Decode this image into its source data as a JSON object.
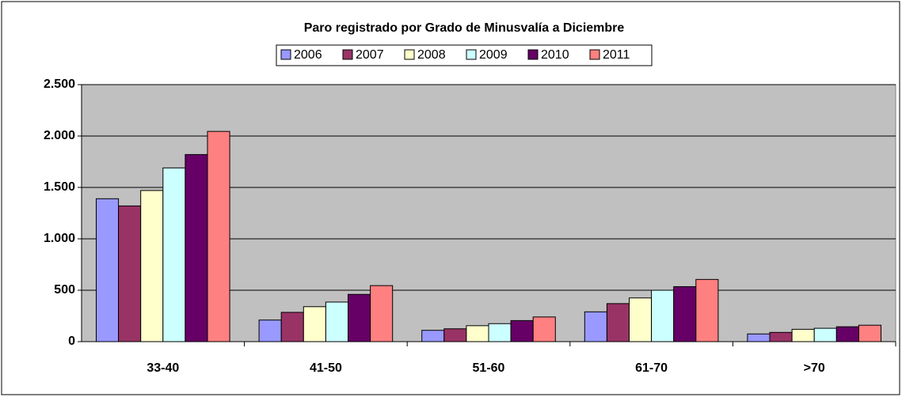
{
  "chart_data": {
    "type": "bar",
    "title": "Paro registrado por Grado de Minusvalía a Diciembre",
    "categories": [
      "33-40",
      "41-50",
      "51-60",
      "61-70",
      ">70"
    ],
    "series": [
      {
        "name": "2006",
        "color": "#9999ff",
        "values": [
          1390,
          210,
          110,
          290,
          75
        ]
      },
      {
        "name": "2007",
        "color": "#993366",
        "values": [
          1320,
          285,
          125,
          370,
          90
        ]
      },
      {
        "name": "2008",
        "color": "#ffffcc",
        "values": [
          1470,
          340,
          155,
          425,
          120
        ]
      },
      {
        "name": "2009",
        "color": "#ccffff",
        "values": [
          1690,
          385,
          175,
          500,
          130
        ]
      },
      {
        "name": "2010",
        "color": "#660066",
        "values": [
          1820,
          460,
          205,
          535,
          145
        ]
      },
      {
        "name": "2011",
        "color": "#ff8080",
        "values": [
          2045,
          545,
          240,
          605,
          160
        ]
      }
    ],
    "ylim": [
      0,
      2500
    ],
    "yticks": [
      0,
      500,
      {
        "value": 1000,
        "label": "1.000"
      },
      {
        "value": 1500,
        "label": "1.500"
      },
      {
        "value": 2000,
        "label": "2.000"
      },
      {
        "value": 2500,
        "label": "2.500"
      }
    ],
    "grid": true,
    "legend": "top",
    "plot_background": "#c0c0c0"
  }
}
